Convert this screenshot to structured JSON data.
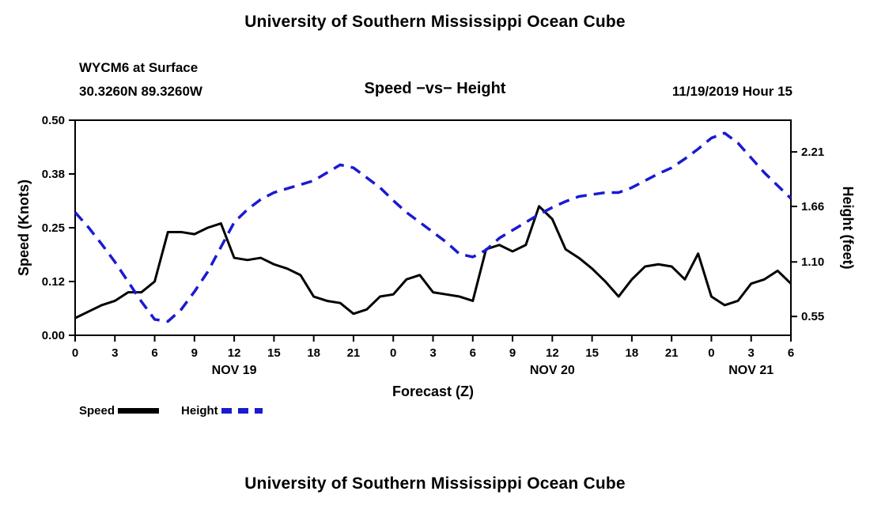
{
  "page": {
    "title_top": "University of Southern Mississippi Ocean Cube",
    "title_bottom": "University of Southern Mississippi Ocean Cube"
  },
  "header": {
    "station": "WYCM6 at Surface",
    "coordinates": "30.3260N 89.3260W",
    "chart_title": "Speed −vs− Height",
    "datetime": "11/19/2019 Hour 15"
  },
  "legend": {
    "speed_label": "Speed",
    "height_label": "Height"
  },
  "colors": {
    "speed": "#000000",
    "height": "#1a1ad1",
    "axis": "#000000"
  },
  "chart_data": {
    "type": "line",
    "title": "Speed −vs− Height",
    "xlabel": "Forecast (Z)",
    "ylabel_left": "Speed (Knots)",
    "ylabel_right": "Height (feet)",
    "x_range_hours": [
      0,
      54
    ],
    "x_ticks": [
      {
        "hour": 0,
        "label": "0"
      },
      {
        "hour": 3,
        "label": "3"
      },
      {
        "hour": 6,
        "label": "6"
      },
      {
        "hour": 9,
        "label": "9"
      },
      {
        "hour": 12,
        "label": "12"
      },
      {
        "hour": 15,
        "label": "15"
      },
      {
        "hour": 18,
        "label": "18"
      },
      {
        "hour": 21,
        "label": "21"
      },
      {
        "hour": 24,
        "label": "0"
      },
      {
        "hour": 27,
        "label": "3"
      },
      {
        "hour": 30,
        "label": "6"
      },
      {
        "hour": 33,
        "label": "9"
      },
      {
        "hour": 36,
        "label": "12"
      },
      {
        "hour": 39,
        "label": "15"
      },
      {
        "hour": 42,
        "label": "18"
      },
      {
        "hour": 45,
        "label": "21"
      },
      {
        "hour": 48,
        "label": "0"
      },
      {
        "hour": 51,
        "label": "3"
      },
      {
        "hour": 54,
        "label": "6"
      }
    ],
    "date_labels": [
      {
        "hour": 12,
        "label": "NOV 19"
      },
      {
        "hour": 36,
        "label": "NOV 20"
      },
      {
        "hour": 51,
        "label": "NOV 21"
      }
    ],
    "left_axis": {
      "range": [
        0.0,
        0.5
      ],
      "ticks": [
        {
          "v": 0.0,
          "label": "0.00"
        },
        {
          "v": 0.125,
          "label": "0.12"
        },
        {
          "v": 0.25,
          "label": "0.25"
        },
        {
          "v": 0.375,
          "label": "0.38"
        },
        {
          "v": 0.5,
          "label": "0.50"
        }
      ]
    },
    "right_axis": {
      "range": [
        0.36,
        2.53
      ],
      "ticks": [
        {
          "v": 0.55,
          "label": "0.55"
        },
        {
          "v": 1.1,
          "label": "1.10"
        },
        {
          "v": 1.66,
          "label": "1.66"
        },
        {
          "v": 2.21,
          "label": "2.21"
        }
      ]
    },
    "series": [
      {
        "name": "Speed",
        "axis": "left",
        "color": "#000000",
        "style": "solid",
        "hours": [
          0,
          1,
          2,
          3,
          4,
          5,
          6,
          7,
          8,
          9,
          10,
          11,
          12,
          13,
          14,
          15,
          16,
          17,
          18,
          19,
          20,
          21,
          22,
          23,
          24,
          25,
          26,
          27,
          28,
          29,
          30,
          31,
          32,
          33,
          34,
          35,
          36,
          37,
          38,
          39,
          40,
          41,
          42,
          43,
          44,
          45,
          46,
          47,
          48,
          49,
          50,
          51,
          52,
          53,
          54
        ],
        "values": [
          0.04,
          0.055,
          0.07,
          0.08,
          0.1,
          0.1,
          0.125,
          0.24,
          0.24,
          0.235,
          0.25,
          0.26,
          0.18,
          0.175,
          0.18,
          0.165,
          0.155,
          0.14,
          0.09,
          0.08,
          0.075,
          0.05,
          0.06,
          0.09,
          0.095,
          0.13,
          0.14,
          0.1,
          0.095,
          0.09,
          0.08,
          0.2,
          0.21,
          0.195,
          0.21,
          0.3,
          0.27,
          0.2,
          0.18,
          0.155,
          0.125,
          0.09,
          0.13,
          0.16,
          0.165,
          0.16,
          0.13,
          0.19,
          0.09,
          0.07,
          0.08,
          0.12,
          0.13,
          0.15,
          0.12
        ]
      },
      {
        "name": "Height",
        "axis": "right",
        "color": "#1a1ad1",
        "style": "dashed",
        "hours": [
          0,
          1,
          2,
          3,
          4,
          5,
          6,
          7,
          8,
          9,
          10,
          11,
          12,
          13,
          14,
          15,
          16,
          17,
          18,
          19,
          20,
          21,
          22,
          23,
          24,
          25,
          26,
          27,
          28,
          29,
          30,
          31,
          32,
          33,
          34,
          35,
          36,
          37,
          38,
          39,
          40,
          41,
          42,
          43,
          44,
          45,
          46,
          47,
          48,
          49,
          50,
          51,
          52,
          53,
          54
        ],
        "values": [
          1.6,
          1.45,
          1.28,
          1.1,
          0.9,
          0.7,
          0.52,
          0.5,
          0.62,
          0.8,
          1.0,
          1.25,
          1.5,
          1.63,
          1.73,
          1.8,
          1.84,
          1.88,
          1.92,
          2.0,
          2.08,
          2.05,
          1.95,
          1.85,
          1.72,
          1.6,
          1.5,
          1.4,
          1.3,
          1.18,
          1.15,
          1.22,
          1.34,
          1.42,
          1.5,
          1.58,
          1.65,
          1.71,
          1.76,
          1.78,
          1.8,
          1.8,
          1.85,
          1.92,
          1.99,
          2.05,
          2.14,
          2.24,
          2.35,
          2.4,
          2.3,
          2.15,
          2.0,
          1.87,
          1.74
        ]
      }
    ]
  }
}
